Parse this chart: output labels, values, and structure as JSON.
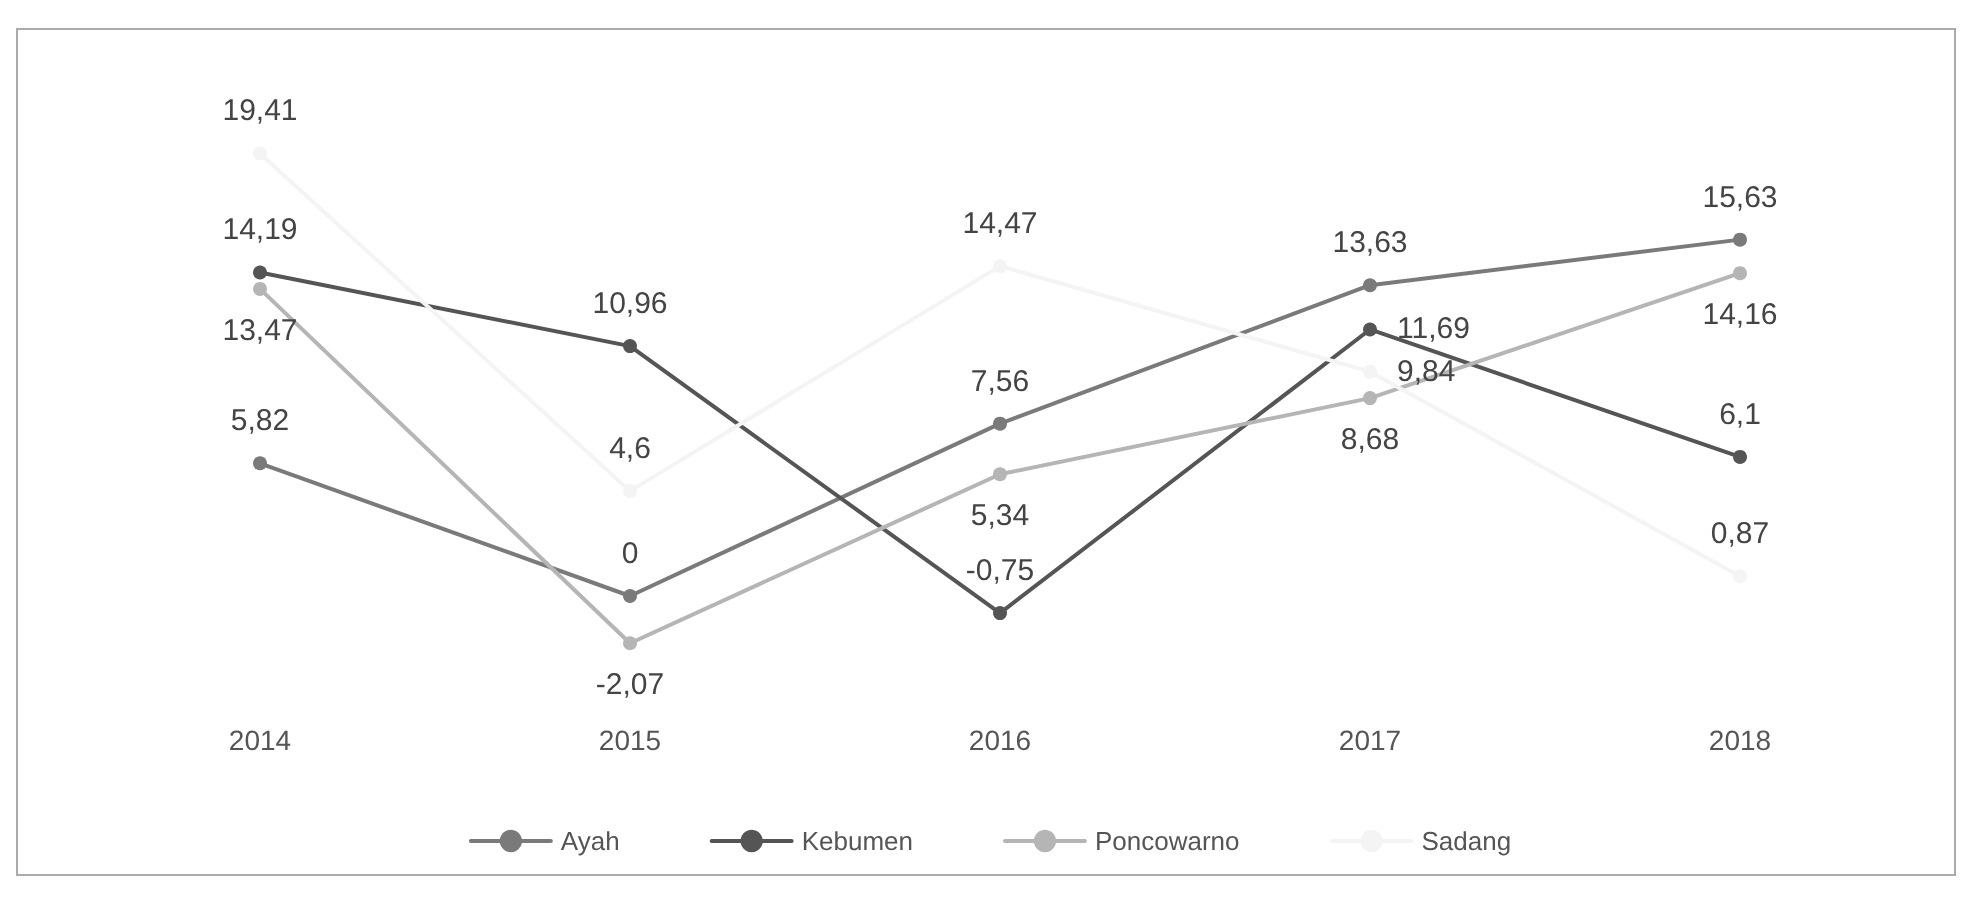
{
  "chart_data": {
    "type": "line",
    "categories": [
      "2014",
      "2015",
      "2016",
      "2017",
      "2018"
    ],
    "series": [
      {
        "name": "Ayah",
        "color": "#7a7a7a",
        "values": [
          5.82,
          0,
          7.56,
          13.63,
          15.63
        ],
        "value_labels": [
          "5,82",
          "0",
          "7,56",
          "13,63",
          "15,63"
        ]
      },
      {
        "name": "Kebumen",
        "color": "#555555",
        "values": [
          14.19,
          10.96,
          -0.75,
          11.69,
          6.1
        ],
        "value_labels": [
          "14,19",
          "10,96",
          "-0,75",
          "11,69",
          "6,1"
        ]
      },
      {
        "name": "Poncowarno",
        "color": "#b5b5b5",
        "values": [
          13.47,
          -2.07,
          5.34,
          8.68,
          14.16
        ],
        "value_labels": [
          "13,47",
          "-2,07",
          "5,34",
          "8,68",
          "14,16"
        ]
      },
      {
        "name": "Sadang",
        "color": "#f4f4f4",
        "values": [
          19.41,
          4.6,
          14.47,
          9.84,
          0.87
        ],
        "value_labels": [
          "19,41",
          "4,6",
          "14,47",
          "9,84",
          "0,87"
        ]
      }
    ],
    "marker": "circle",
    "line_style": "solid",
    "grid": false,
    "legend": "bottom"
  }
}
